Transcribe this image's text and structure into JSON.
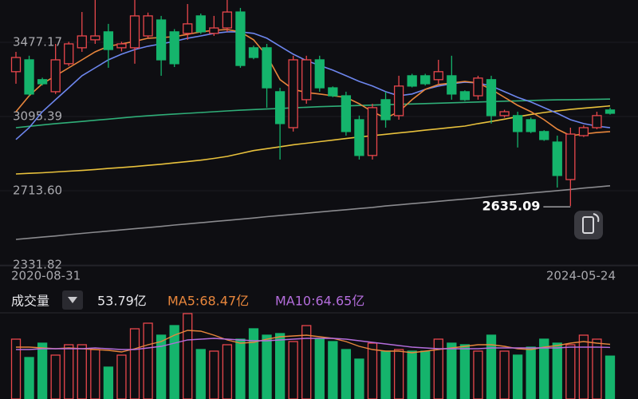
{
  "chart_data": [
    {
      "type": "candlestick",
      "categories": [
        "2020-08-31",
        null,
        null,
        null,
        null,
        null,
        null,
        null,
        null,
        null,
        null,
        null,
        null,
        null,
        null,
        null,
        null,
        null,
        null,
        null,
        null,
        null,
        null,
        null,
        null,
        null,
        null,
        null,
        null,
        null,
        null,
        null,
        null,
        null,
        null,
        null,
        null,
        null,
        null,
        null,
        null,
        null,
        null,
        null,
        null,
        "2024-05-24"
      ],
      "open": [
        3326,
        3387,
        3285,
        3223,
        3367,
        3449,
        3490,
        3531,
        3449,
        3449,
        3510,
        3592,
        3531,
        3523,
        3613,
        3523,
        3551,
        3633,
        3449,
        3449,
        3223,
        3038,
        3182,
        3387,
        3243,
        3202,
        3079,
        2895,
        3182,
        3100,
        3305,
        3305,
        3285,
        3305,
        3223,
        3202,
        3285,
        3100,
        3100,
        3079,
        3018,
        2964,
        2771,
        2997,
        3038,
        3129
      ],
      "high": [
        3428,
        3408,
        3295,
        3469,
        3480,
        3633,
        3695,
        3572,
        3480,
        3695,
        3630,
        3613,
        3545,
        3674,
        3625,
        3613,
        3731.69,
        3654,
        3460,
        3469,
        3243,
        3408,
        3408,
        3408,
        3250,
        3223,
        3100,
        3161,
        3223,
        3305,
        3315,
        3315,
        3387,
        3408,
        3230,
        3305,
        3305,
        3130,
        3120,
        3090,
        3025,
        2997,
        3038,
        3050,
        3120,
        3140
      ],
      "low": [
        3264,
        3202,
        3255,
        3211,
        3355,
        3428,
        3469,
        3346,
        3430,
        3367,
        3500,
        3305,
        3350,
        3490,
        3520,
        3510,
        3531,
        3346,
        3390,
        3141,
        2874,
        3018,
        3161,
        3223,
        3195,
        2997,
        2874,
        2874,
        3038,
        3079,
        3245,
        3255,
        3264,
        3182,
        3175,
        3182,
        3059,
        3090,
        2936,
        3010,
        2970,
        2730,
        2635.09,
        2990,
        3030,
        3105
      ],
      "close": [
        3399,
        3211,
        3264,
        3387,
        3469,
        3510,
        3510,
        3440,
        3469,
        3613,
        3613,
        3387,
        3367,
        3572,
        3531,
        3551,
        3633,
        3358,
        3399,
        3243,
        3059,
        3387,
        3387,
        3243,
        3202,
        3018,
        2895,
        3141,
        3079,
        3252,
        3252,
        3264,
        3326,
        3211,
        3182,
        3293,
        3100,
        3120,
        3018,
        3018,
        2977,
        2792,
        3005,
        3038,
        3100,
        3112
      ],
      "up_color": "#e8474c",
      "down_color": "#15b46c",
      "lines": [
        {
          "color": "#8a8a8e",
          "values": [
            2463,
            2469,
            2475,
            2481,
            2488,
            2494,
            2500,
            2506,
            2512,
            2518,
            2524,
            2530,
            2537,
            2543,
            2549,
            2555,
            2561,
            2567,
            2573,
            2580,
            2586,
            2592,
            2598,
            2604,
            2610,
            2616,
            2622,
            2628,
            2635,
            2641,
            2647,
            2653,
            2659,
            2665,
            2671,
            2677,
            2684,
            2690,
            2696,
            2702,
            2708,
            2714,
            2720,
            2727,
            2733,
            2739
          ]
        },
        {
          "color": "#e8c13c",
          "values": [
            2800,
            2803,
            2806,
            2810,
            2814,
            2818,
            2823,
            2828,
            2833,
            2838,
            2844,
            2850,
            2857,
            2864,
            2871,
            2880,
            2890,
            2905,
            2920,
            2930,
            2940,
            2950,
            2958,
            2966,
            2974,
            2982,
            2990,
            2997,
            3004,
            3011,
            3018,
            3025,
            3032,
            3039,
            3046,
            3059,
            3070,
            3082,
            3094,
            3106,
            3116,
            3124,
            3132,
            3138,
            3144,
            3150
          ]
        },
        {
          "color": "#2fae78",
          "values": [
            3038,
            3045,
            3052,
            3059,
            3064,
            3070,
            3076,
            3082,
            3088,
            3094,
            3099,
            3104,
            3108,
            3112,
            3116,
            3120,
            3124,
            3128,
            3131,
            3134,
            3137,
            3140,
            3143,
            3146,
            3148,
            3150,
            3152,
            3154,
            3156,
            3158,
            3160,
            3162,
            3164,
            3166,
            3168,
            3170,
            3172,
            3174,
            3176,
            3178,
            3180,
            3181,
            3182,
            3183,
            3184,
            3185
          ]
        },
        {
          "color": "#6d86ee",
          "values": [
            2977,
            3038,
            3120,
            3182,
            3243,
            3305,
            3346,
            3387,
            3416,
            3440,
            3457,
            3469,
            3482,
            3498,
            3510,
            3523,
            3531,
            3531,
            3523,
            3498,
            3457,
            3416,
            3383,
            3358,
            3334,
            3305,
            3276,
            3252,
            3223,
            3202,
            3211,
            3235,
            3252,
            3264,
            3272,
            3268,
            3252,
            3223,
            3194,
            3170,
            3141,
            3112,
            3079,
            3059,
            3046,
            3038
          ]
        },
        {
          "color": "#e8863c",
          "values": [
            3120,
            3202,
            3264,
            3305,
            3346,
            3387,
            3428,
            3457,
            3469,
            3482,
            3498,
            3502,
            3506,
            3518,
            3531,
            3539,
            3543,
            3531,
            3490,
            3408,
            3285,
            3235,
            3219,
            3211,
            3202,
            3194,
            3161,
            3120,
            3087,
            3120,
            3182,
            3235,
            3260,
            3268,
            3276,
            3268,
            3235,
            3194,
            3153,
            3120,
            3079,
            3030,
            2997,
            3005,
            3013,
            3018
          ]
        }
      ],
      "ylim": [
        2331.82,
        3731.69
      ],
      "yticks": [
        2331.82,
        {
          "value": 2713.6,
          "label": "2713.60"
        },
        3095.39,
        3477.17
      ]
    },
    {
      "type": "bar",
      "title": "成交量",
      "current_label": "53.79亿",
      "values": [
        75,
        52,
        70,
        55,
        68,
        68,
        62,
        40,
        55,
        88,
        95,
        80,
        92,
        107,
        62,
        60,
        68,
        75,
        88,
        80,
        82,
        72,
        92,
        75,
        72,
        62,
        50,
        70,
        60,
        62,
        60,
        60,
        75,
        70,
        68,
        60,
        80,
        60,
        55,
        65,
        75,
        70,
        68,
        80,
        75,
        53.79
      ],
      "ylim": [
        0,
        110
      ],
      "series": [
        {
          "name": "MA5:68.47亿",
          "color": "#e8863c",
          "values": [
            65,
            65,
            64,
            63,
            64,
            63,
            62,
            61,
            59,
            63,
            68,
            72,
            80,
            86,
            85,
            80,
            74,
            70,
            71,
            75,
            78,
            79,
            80,
            78,
            76,
            72,
            66,
            62,
            60,
            60,
            58,
            60,
            62,
            64,
            66,
            68,
            68,
            66,
            63,
            62,
            65,
            67,
            70,
            72,
            70,
            68.47
          ]
        },
        {
          "name": "MA10:64.65亿",
          "color": "#b46ddc",
          "values": [
            62,
            62,
            63,
            63,
            63,
            63,
            64,
            63,
            62,
            62,
            64,
            66,
            70,
            74,
            75,
            76,
            75,
            74,
            73,
            73,
            74,
            75,
            76,
            76,
            76,
            75,
            73,
            71,
            69,
            67,
            65,
            64,
            63,
            63,
            63,
            63,
            64,
            64,
            64,
            64,
            64,
            64,
            65,
            65,
            65,
            64.65
          ]
        }
      ]
    }
  ]
}
